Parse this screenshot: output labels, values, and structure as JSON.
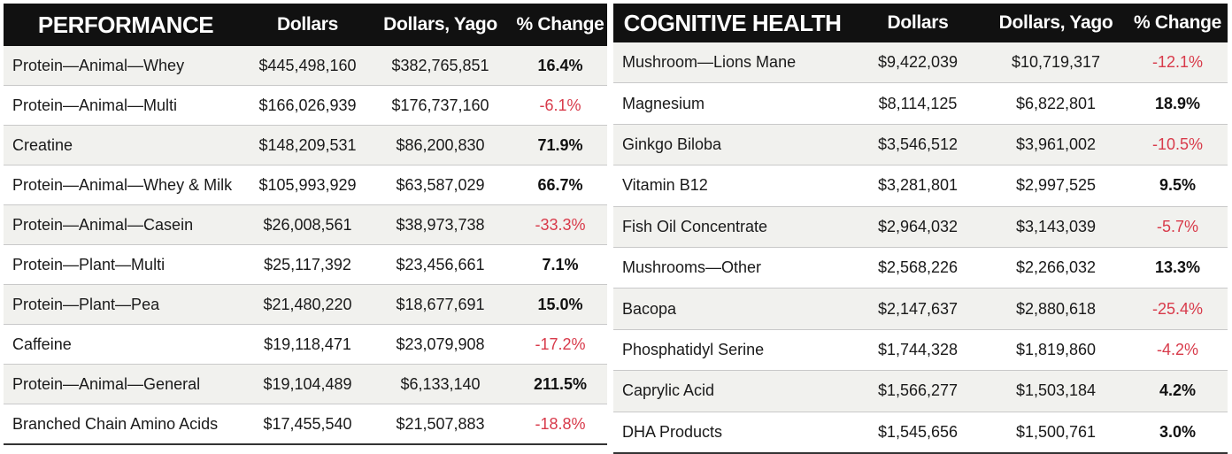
{
  "performance": {
    "headers": {
      "category": "PERFORMANCE",
      "dollars": "Dollars",
      "dollars_yago": "Dollars, Yago",
      "pct_change": "% Change"
    },
    "rows": [
      {
        "category": "Protein—Animal—Whey",
        "dollars": "$445,498,160",
        "dollars_yago": "$382,765,851",
        "pct_change": "16.4%",
        "negative": false
      },
      {
        "category": "Protein—Animal—Multi",
        "dollars": "$166,026,939",
        "dollars_yago": "$176,737,160",
        "pct_change": "-6.1%",
        "negative": true
      },
      {
        "category": "Creatine",
        "dollars": "$148,209,531",
        "dollars_yago": "$86,200,830",
        "pct_change": "71.9%",
        "negative": false
      },
      {
        "category": "Protein—Animal—Whey & Milk",
        "dollars": "$105,993,929",
        "dollars_yago": "$63,587,029",
        "pct_change": "66.7%",
        "negative": false
      },
      {
        "category": "Protein—Animal—Casein",
        "dollars": "$26,008,561",
        "dollars_yago": "$38,973,738",
        "pct_change": "-33.3%",
        "negative": true
      },
      {
        "category": "Protein—Plant—Multi",
        "dollars": "$25,117,392",
        "dollars_yago": "$23,456,661",
        "pct_change": "7.1%",
        "negative": false
      },
      {
        "category": "Protein—Plant—Pea",
        "dollars": "$21,480,220",
        "dollars_yago": "$18,677,691",
        "pct_change": "15.0%",
        "negative": false
      },
      {
        "category": "Caffeine",
        "dollars": "$19,118,471",
        "dollars_yago": "$23,079,908",
        "pct_change": "-17.2%",
        "negative": true
      },
      {
        "category": "Protein—Animal—General",
        "dollars": "$19,104,489",
        "dollars_yago": "$6,133,140",
        "pct_change": "211.5%",
        "negative": false
      },
      {
        "category": "Branched Chain Amino Acids",
        "dollars": "$17,455,540",
        "dollars_yago": "$21,507,883",
        "pct_change": "-18.8%",
        "negative": true
      }
    ]
  },
  "cognitive_health": {
    "headers": {
      "category": "COGNITIVE HEALTH",
      "dollars": "Dollars",
      "dollars_yago": "Dollars, Yago",
      "pct_change": "% Change"
    },
    "rows": [
      {
        "category": "Mushroom—Lions Mane",
        "dollars": "$9,422,039",
        "dollars_yago": "$10,719,317",
        "pct_change": "-12.1%",
        "negative": true
      },
      {
        "category": "Magnesium",
        "dollars": "$8,114,125",
        "dollars_yago": "$6,822,801",
        "pct_change": "18.9%",
        "negative": false
      },
      {
        "category": "Ginkgo Biloba",
        "dollars": "$3,546,512",
        "dollars_yago": "$3,961,002",
        "pct_change": "-10.5%",
        "negative": true
      },
      {
        "category": "Vitamin B12",
        "dollars": "$3,281,801",
        "dollars_yago": "$2,997,525",
        "pct_change": "9.5%",
        "negative": false
      },
      {
        "category": "Fish Oil Concentrate",
        "dollars": "$2,964,032",
        "dollars_yago": "$3,143,039",
        "pct_change": "-5.7%",
        "negative": true
      },
      {
        "category": "Mushrooms—Other",
        "dollars": "$2,568,226",
        "dollars_yago": "$2,266,032",
        "pct_change": "13.3%",
        "negative": false
      },
      {
        "category": "Bacopa",
        "dollars": "$2,147,637",
        "dollars_yago": "$2,880,618",
        "pct_change": "-25.4%",
        "negative": true
      },
      {
        "category": "Phosphatidyl Serine",
        "dollars": "$1,744,328",
        "dollars_yago": "$1,819,860",
        "pct_change": "-4.2%",
        "negative": true
      },
      {
        "category": "Caprylic Acid",
        "dollars": "$1,566,277",
        "dollars_yago": "$1,503,184",
        "pct_change": "4.2%",
        "negative": false
      },
      {
        "category": "DHA Products",
        "dollars": "$1,545,656",
        "dollars_yago": "$1,500,761",
        "pct_change": "3.0%",
        "negative": false
      }
    ]
  },
  "colors": {
    "header_bg": "#111111",
    "header_text": "#ffffff",
    "row_alt_bg": "#f1f1ee",
    "negative_text": "#d83a4a"
  }
}
